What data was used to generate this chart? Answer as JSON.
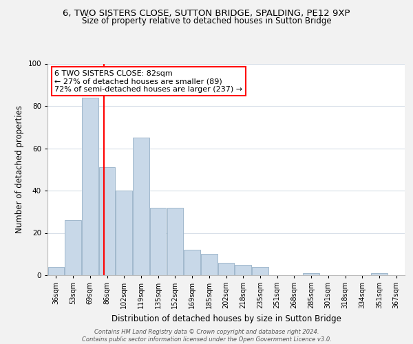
{
  "title": "6, TWO SISTERS CLOSE, SUTTON BRIDGE, SPALDING, PE12 9XP",
  "subtitle": "Size of property relative to detached houses in Sutton Bridge",
  "xlabel": "Distribution of detached houses by size in Sutton Bridge",
  "ylabel": "Number of detached properties",
  "bar_labels": [
    "36sqm",
    "53sqm",
    "69sqm",
    "86sqm",
    "102sqm",
    "119sqm",
    "135sqm",
    "152sqm",
    "169sqm",
    "185sqm",
    "202sqm",
    "218sqm",
    "235sqm",
    "251sqm",
    "268sqm",
    "285sqm",
    "301sqm",
    "318sqm",
    "334sqm",
    "351sqm",
    "367sqm"
  ],
  "bar_values": [
    4,
    26,
    84,
    51,
    40,
    65,
    32,
    32,
    12,
    10,
    6,
    5,
    4,
    0,
    0,
    1,
    0,
    0,
    0,
    1,
    0
  ],
  "bar_color": "#c8d8e8",
  "bar_edge_color": "#a0b8cc",
  "vline_color": "red",
  "vline_x": 2.82,
  "annotation_box_line1": "6 TWO SISTERS CLOSE: 82sqm",
  "annotation_box_line2": "← 27% of detached houses are smaller (89)",
  "annotation_box_line3": "72% of semi-detached houses are larger (237) →",
  "ylim": [
    0,
    100
  ],
  "yticks": [
    0,
    20,
    40,
    60,
    80,
    100
  ],
  "footer_text": "Contains HM Land Registry data © Crown copyright and database right 2024.\nContains public sector information licensed under the Open Government Licence v3.0.",
  "bg_color": "#f2f2f2",
  "plot_bg_color": "#ffffff",
  "grid_color": "#d8dfe8",
  "title_fontsize": 9.5,
  "subtitle_fontsize": 8.5,
  "tick_fontsize": 7,
  "ylabel_fontsize": 8.5,
  "xlabel_fontsize": 8.5,
  "annotation_fontsize": 8,
  "footer_fontsize": 6
}
